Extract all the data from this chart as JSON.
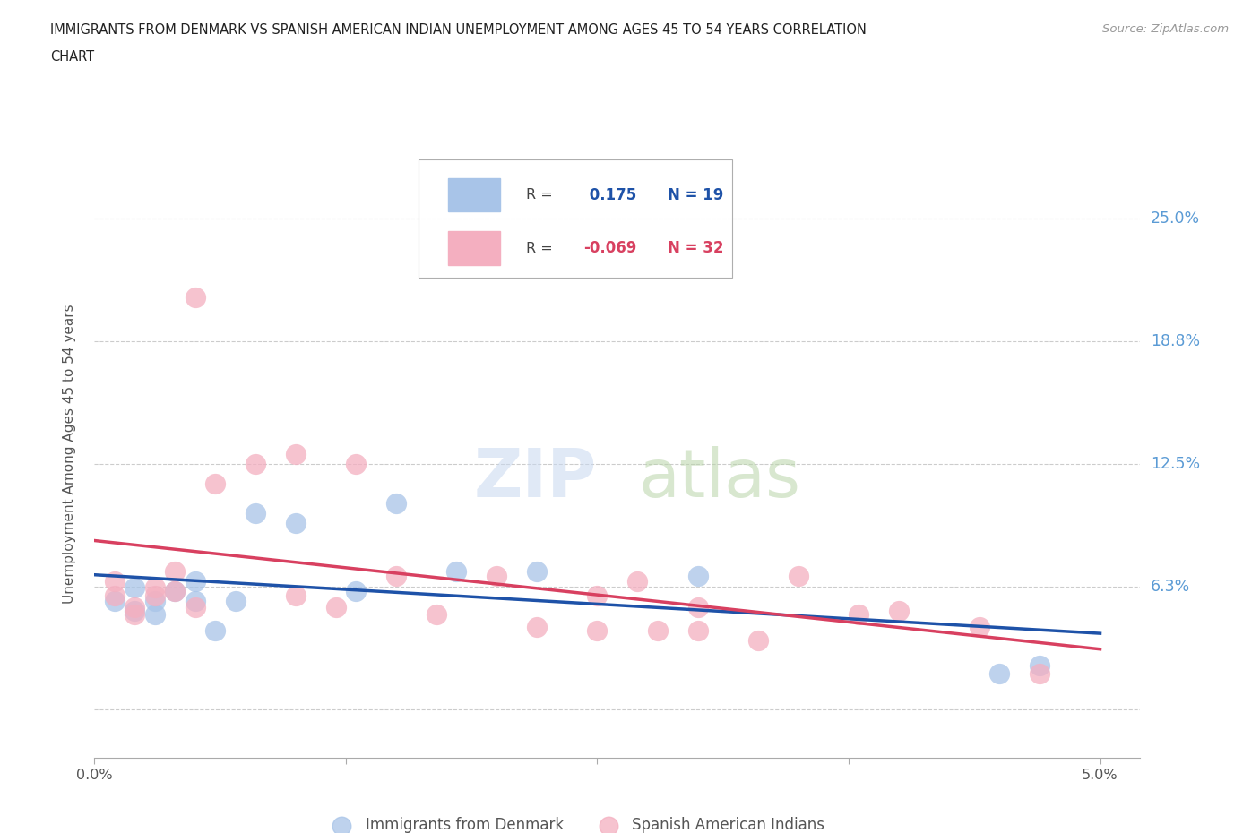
{
  "title_line1": "IMMIGRANTS FROM DENMARK VS SPANISH AMERICAN INDIAN UNEMPLOYMENT AMONG AGES 45 TO 54 YEARS CORRELATION",
  "title_line2": "CHART",
  "source_text": "Source: ZipAtlas.com",
  "ylabel": "Unemployment Among Ages 45 to 54 years",
  "xlim": [
    0.0,
    0.052
  ],
  "ylim": [
    -0.025,
    0.285
  ],
  "ytick_vals": [
    0.0,
    0.0625,
    0.125,
    0.1875,
    0.25
  ],
  "ytick_labels": [
    "",
    "6.3%",
    "12.5%",
    "18.8%",
    "25.0%"
  ],
  "xtick_vals": [
    0.0,
    0.0125,
    0.025,
    0.0375,
    0.05
  ],
  "xtick_labels": [
    "0.0%",
    "",
    "",
    "",
    "5.0%"
  ],
  "denmark_x": [
    0.001,
    0.002,
    0.002,
    0.003,
    0.003,
    0.004,
    0.005,
    0.005,
    0.006,
    0.007,
    0.008,
    0.01,
    0.013,
    0.015,
    0.018,
    0.022,
    0.03,
    0.045,
    0.047
  ],
  "denmark_y": [
    0.055,
    0.05,
    0.062,
    0.055,
    0.048,
    0.06,
    0.055,
    0.065,
    0.04,
    0.055,
    0.1,
    0.095,
    0.06,
    0.105,
    0.07,
    0.07,
    0.068,
    0.018,
    0.022
  ],
  "spain_ai_x": [
    0.001,
    0.001,
    0.002,
    0.002,
    0.003,
    0.003,
    0.004,
    0.004,
    0.005,
    0.005,
    0.006,
    0.008,
    0.01,
    0.01,
    0.012,
    0.013,
    0.015,
    0.017,
    0.02,
    0.022,
    0.025,
    0.025,
    0.027,
    0.028,
    0.03,
    0.03,
    0.033,
    0.035,
    0.038,
    0.04,
    0.044,
    0.047
  ],
  "spain_ai_y": [
    0.058,
    0.065,
    0.052,
    0.048,
    0.058,
    0.062,
    0.06,
    0.07,
    0.052,
    0.21,
    0.115,
    0.125,
    0.13,
    0.058,
    0.052,
    0.125,
    0.068,
    0.048,
    0.068,
    0.042,
    0.058,
    0.04,
    0.065,
    0.04,
    0.052,
    0.04,
    0.035,
    0.068,
    0.048,
    0.05,
    0.042,
    0.018
  ],
  "denmark_R": 0.175,
  "denmark_N": 19,
  "spain_ai_R": -0.069,
  "spain_ai_N": 32,
  "denmark_scatter_color": "#a8c4e8",
  "spain_ai_scatter_color": "#f4afc0",
  "denmark_line_color": "#1e52a8",
  "spain_ai_line_color": "#d84060",
  "background_color": "#ffffff",
  "grid_color": "#cccccc",
  "title_color": "#222222",
  "right_label_color": "#5b9bd5",
  "axis_label_color": "#555555",
  "source_color": "#999999"
}
